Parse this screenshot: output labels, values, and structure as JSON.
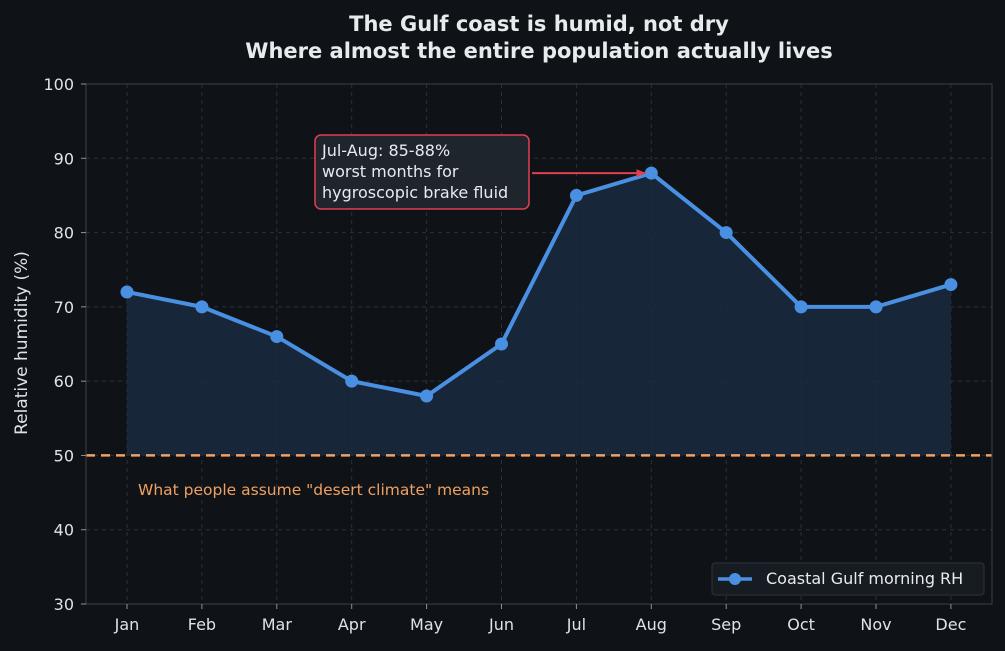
{
  "chart_data": {
    "type": "line",
    "title": "The Gulf coast is humid, not dry",
    "subtitle": "Where almost the entire population actually lives",
    "ylabel": "Relative humidity (%)",
    "xlabel": "",
    "ylim": [
      30,
      100
    ],
    "yticks": [
      "30",
      "40",
      "50",
      "60",
      "70",
      "80",
      "90",
      "100"
    ],
    "categories": [
      "Jan",
      "Feb",
      "Mar",
      "Apr",
      "May",
      "Jun",
      "Jul",
      "Aug",
      "Sep",
      "Oct",
      "Nov",
      "Dec"
    ],
    "series": [
      {
        "name": "Coastal Gulf morning RH",
        "values": [
          72,
          70,
          66,
          60,
          58,
          65,
          85,
          88,
          80,
          70,
          70,
          73
        ],
        "color": "#4a90e2",
        "fill_base": 50,
        "fill_color": "#1a2a40"
      }
    ],
    "reference_line": {
      "value": 50,
      "label": "What people assume \"desert climate\" means",
      "color": "#f0a060"
    },
    "annotation": {
      "lines": [
        "Jul-Aug: 85-88%",
        "worst months for",
        "hygroscopic brake fluid"
      ],
      "target_category": "Aug",
      "target_value": 88,
      "color": "#e04050"
    },
    "legend_position": "lower-right",
    "grid": true,
    "colors": {
      "background": "#0f1317",
      "axes_border": "#3a4148"
    }
  }
}
